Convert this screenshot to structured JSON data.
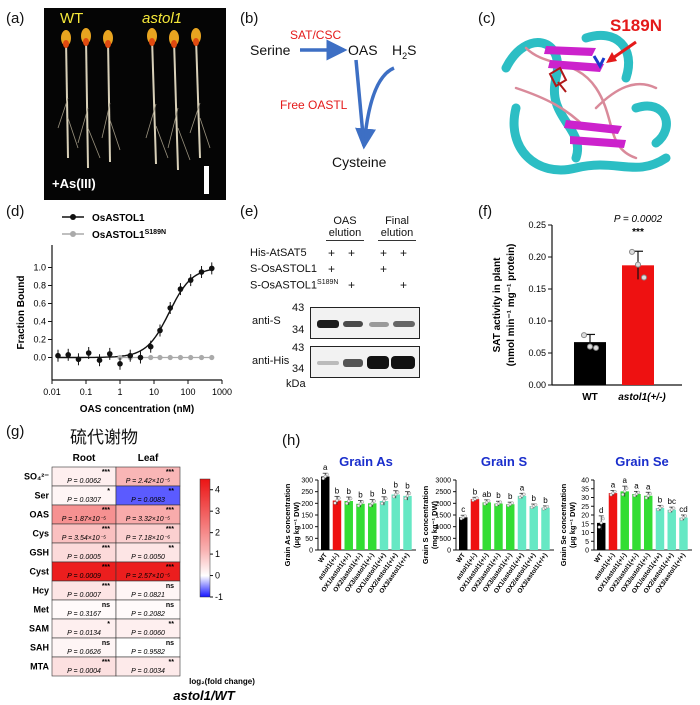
{
  "panel_labels": [
    "(a)",
    "(b)",
    "(c)",
    "(d)",
    "(e)",
    "(f)",
    "(g)",
    "(h)"
  ],
  "panel_a": {
    "wt": "WT",
    "mutant": "astol1",
    "treatment": "+As(III)"
  },
  "panel_b": {
    "serine": "Serine",
    "enzyme": "SAT/CSC",
    "oas": "OAS",
    "h2s": "H",
    "h2s_sub": "2",
    "h2s_tail": "S",
    "oastl": "Free OASTL",
    "cysteine": "Cysteine"
  },
  "panel_c": {
    "mutation": "S189N"
  },
  "panel_d": {
    "legend": [
      {
        "name": "OsASTOL1",
        "color": "#111111"
      },
      {
        "name": "OsASTOL1",
        "sup": "S189N",
        "color": "#aaaaaa"
      }
    ],
    "ylabel": "Fraction Bound",
    "xlabel": "OAS concentration (nM)",
    "yticks": [
      "0.0",
      "0.2",
      "0.4",
      "0.6",
      "0.8",
      "1.0"
    ],
    "xticks": [
      "0.01",
      "0.1",
      "1",
      "10",
      "100",
      "1000"
    ],
    "chart_data": {
      "type": "scatter",
      "ylim": [
        -0.25,
        1.25
      ],
      "x_scale": "log",
      "series": [
        {
          "name": "OsASTOL1",
          "x": [
            0.015,
            0.03,
            0.06,
            0.12,
            0.25,
            0.5,
            1,
            2,
            4,
            8,
            15,
            30,
            60,
            120,
            250,
            500
          ],
          "y": [
            0.02,
            0.03,
            -0.02,
            0.05,
            -0.03,
            0.04,
            -0.07,
            0.02,
            0.0,
            0.12,
            0.3,
            0.55,
            0.76,
            0.86,
            0.95,
            0.99
          ]
        },
        {
          "name": "OsASTOL1 S189N",
          "x": [
            1,
            2,
            4,
            8,
            15,
            30,
            60,
            120,
            250,
            500
          ],
          "y": [
            0.0,
            0.0,
            0.0,
            0.0,
            0.0,
            0.0,
            0.0,
            0.0,
            0.0,
            0.0
          ]
        }
      ]
    }
  },
  "panel_e": {
    "col_headers": [
      [
        "OAS",
        "elution"
      ],
      [
        "Final",
        "elution"
      ]
    ],
    "rows": [
      {
        "label": "His-AtSAT5",
        "marks": [
          "+",
          "+",
          "+",
          "+"
        ]
      },
      {
        "label": "S-OsASTOL1",
        "marks": [
          "+",
          "",
          "+",
          ""
        ]
      },
      {
        "label": "S-OsASTOL1",
        "sup": "S189N",
        "marks": [
          "",
          "+",
          "",
          "+"
        ]
      }
    ],
    "blots": [
      {
        "label": "anti-S",
        "markers": [
          "43",
          "34"
        ]
      },
      {
        "label": "anti-His",
        "markers": [
          "43",
          "34"
        ]
      }
    ],
    "kda": "kDa"
  },
  "panel_f": {
    "ylabel1": "SAT activity in plant",
    "ylabel2": "(nmol min⁻¹ mg⁻¹ protein)",
    "pvalue": "P = 0.0002",
    "stars": "***",
    "xlabel_wt": "WT",
    "xlabel_mut": "astol1(+/-)",
    "yticks": [
      "0.00",
      "0.05",
      "0.10",
      "0.15",
      "0.20",
      "0.25"
    ],
    "chart_data": {
      "type": "bar",
      "categories": [
        "WT",
        "astol1(+/-)"
      ],
      "values": [
        0.067,
        0.187
      ],
      "errors": [
        0.012,
        0.022
      ],
      "colors": [
        "#000000",
        "#ee1111"
      ],
      "points": [
        [
          0.078,
          0.06,
          0.058
        ],
        [
          0.208,
          0.188,
          0.168
        ]
      ],
      "ylim": [
        0,
        0.25
      ]
    }
  },
  "panel_g": {
    "chinese_title": "硫代谢物",
    "col_headers": [
      "Root",
      "Leaf"
    ],
    "colorbar_label": "log₂(fold change)",
    "colorbar_ticks": [
      "4",
      "3",
      "2",
      "1",
      "0",
      "-1"
    ],
    "footer": "astol1/WT",
    "chart_data": {
      "type": "heatmap",
      "vmin": -1,
      "vmax": 4.5,
      "rows": [
        {
          "label": "SO₄²⁻",
          "cells": [
            {
              "stars": "***",
              "p": "P = 0.0062",
              "v": 0.3
            },
            {
              "stars": "***",
              "p": "P = 2.42×10⁻⁵",
              "v": 1.4
            }
          ]
        },
        {
          "label": "Ser",
          "cells": [
            {
              "stars": "*",
              "p": "P = 0.0307",
              "v": 0.2
            },
            {
              "stars": "**",
              "p": "P = 0.0083",
              "v": -0.7
            }
          ]
        },
        {
          "label": "OAS",
          "cells": [
            {
              "stars": "***",
              "p": "P = 1.87×10⁻⁵",
              "v": 2.1
            },
            {
              "stars": "***",
              "p": "P = 3.32×10⁻⁵",
              "v": 1.6
            }
          ]
        },
        {
          "label": "Cys",
          "cells": [
            {
              "stars": "***",
              "p": "P = 3.54×10⁻⁵",
              "v": 1.2
            },
            {
              "stars": "***",
              "p": "P = 7.18×10⁻⁶",
              "v": 0.9
            }
          ]
        },
        {
          "label": "GSH",
          "cells": [
            {
              "stars": "***",
              "p": "P = 0.0005",
              "v": 0.7
            },
            {
              "stars": "**",
              "p": "P = 0.0050",
              "v": 0.5
            }
          ]
        },
        {
          "label": "Cyst",
          "cells": [
            {
              "stars": "***",
              "p": "P = 0.0009",
              "v": 4.3
            },
            {
              "stars": "***",
              "p": "P = 2.57×10⁻⁵",
              "v": 4.3
            }
          ]
        },
        {
          "label": "Hcy",
          "cells": [
            {
              "stars": "***",
              "p": "P = 0.0007",
              "v": 0.5
            },
            {
              "stars": "ns",
              "p": "P = 0.0821",
              "v": 0.2
            }
          ]
        },
        {
          "label": "Met",
          "cells": [
            {
              "stars": "ns",
              "p": "P = 0.3167",
              "v": 0.1
            },
            {
              "stars": "ns",
              "p": "P = 0.2082",
              "v": 0.1
            }
          ]
        },
        {
          "label": "SAM",
          "cells": [
            {
              "stars": "*",
              "p": "P = 0.0134",
              "v": 0.3
            },
            {
              "stars": "**",
              "p": "P = 0.0060",
              "v": 0.3
            }
          ]
        },
        {
          "label": "SAH",
          "cells": [
            {
              "stars": "ns",
              "p": "P = 0.0626",
              "v": 0.2
            },
            {
              "stars": "ns",
              "p": "P = 0.9582",
              "v": 0.0
            }
          ]
        },
        {
          "label": "MTA",
          "cells": [
            {
              "stars": "***",
              "p": "P = 0.0004",
              "v": 0.6
            },
            {
              "stars": "**",
              "p": "P = 0.0034",
              "v": 0.4
            }
          ]
        }
      ]
    }
  },
  "panel_h": {
    "categories": [
      "WT",
      "astol1(+/-)",
      "OX1/astol1(+/-)",
      "OX2/astol1(+/-)",
      "OX3/astol1(+/-)",
      "OX1/astol1(+/+)",
      "OX2/astol1(+/+)",
      "OX3/astol1(+/+)"
    ],
    "colors": [
      "#000000",
      "#ee1111",
      "#33dd33",
      "#33dd33",
      "#33dd33",
      "#66e8c4",
      "#66e8c4",
      "#66e8c4"
    ],
    "charts": [
      {
        "title": "Grain As",
        "title_color": "#1a2ecc",
        "ylabel1": "Grain As concentration",
        "ylabel2": "(μg kg⁻¹ DW)",
        "yticks": [
          "0",
          "50",
          "100",
          "150",
          "200",
          "250",
          "300"
        ],
        "chart_data": {
          "type": "bar",
          "ylim": [
            0,
            300
          ],
          "values": [
            315,
            212,
            210,
            198,
            200,
            210,
            238,
            232
          ],
          "errors": [
            14,
            18,
            17,
            14,
            16,
            18,
            16,
            18
          ],
          "letters": [
            "a",
            "b",
            "b",
            "b",
            "b",
            "b",
            "b",
            "b"
          ]
        }
      },
      {
        "title": "Grain S",
        "title_color": "#1a2ecc",
        "ylabel1": "Grain S concentration",
        "ylabel2": "(mg kg⁻¹ DW)",
        "yticks": [
          "0",
          "500",
          "1000",
          "1500",
          "2000",
          "2500",
          "3000"
        ],
        "chart_data": {
          "type": "bar",
          "ylim": [
            0,
            3000
          ],
          "values": [
            1400,
            2180,
            2040,
            1990,
            1960,
            2320,
            1880,
            1810
          ],
          "errors": [
            90,
            80,
            110,
            100,
            90,
            110,
            90,
            80
          ],
          "letters": [
            "c",
            "b",
            "ab",
            "b",
            "b",
            "a",
            "b",
            "b"
          ]
        }
      },
      {
        "title": "Grain Se",
        "title_color": "#1a2ecc",
        "ylabel1": "Grain Se concentration",
        "ylabel2": "(μg kg⁻¹ DW)",
        "yticks": [
          "0",
          "5",
          "10",
          "15",
          "20",
          "25",
          "30",
          "35",
          "40"
        ],
        "chart_data": {
          "type": "bar",
          "ylim": [
            0,
            40
          ],
          "values": [
            15.5,
            32.5,
            33.5,
            32,
            31,
            24,
            23,
            18.5
          ],
          "errors": [
            4,
            1.5,
            3,
            1.5,
            2,
            1.5,
            1.5,
            1.5
          ],
          "letters": [
            "d",
            "a",
            "a",
            "a",
            "a",
            "b",
            "bc",
            "cd"
          ]
        }
      }
    ]
  }
}
